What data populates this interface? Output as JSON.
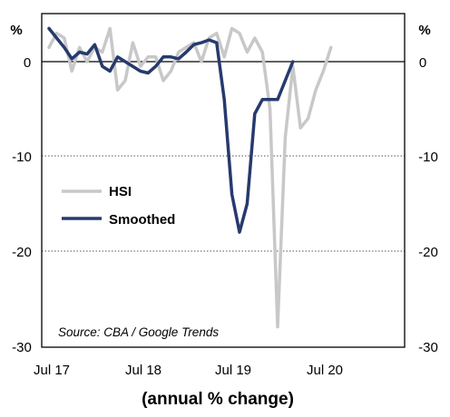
{
  "chart_data": {
    "type": "line",
    "title": "",
    "xlabel": "(annual % change)",
    "ylabel_left": "%",
    "ylabel_right": "%",
    "source": "Source: CBA / Google Trends",
    "x_tick_labels": [
      "Jul 17",
      "Jul 18",
      "Jul 19",
      "Jul 20"
    ],
    "x_range": [
      "2017-07",
      "2020-11"
    ],
    "ylim": [
      -30,
      3
    ],
    "y_ticks": [
      -30,
      -20,
      -10,
      0
    ],
    "y_tick_labels": [
      "-30",
      "-20",
      "-10",
      "0"
    ],
    "grid": "dotted horizontal lines at -10 and -20; solid zero line",
    "legend": {
      "placement": "left-middle"
    },
    "x": [
      "2017-07",
      "2017-08",
      "2017-09",
      "2017-10",
      "2017-11",
      "2017-12",
      "2018-01",
      "2018-02",
      "2018-03",
      "2018-04",
      "2018-05",
      "2018-06",
      "2018-07",
      "2018-08",
      "2018-09",
      "2018-10",
      "2018-11",
      "2018-12",
      "2019-01",
      "2019-02",
      "2019-03",
      "2019-04",
      "2019-05",
      "2019-06",
      "2019-07",
      "2019-08",
      "2019-09",
      "2019-10",
      "2019-11",
      "2019-12",
      "2020-01",
      "2020-02",
      "2020-03",
      "2020-04",
      "2020-05",
      "2020-06",
      "2020-07",
      "2020-08",
      "2020-09",
      "2020-10",
      "2020-11"
    ],
    "series": [
      {
        "name": "HSI",
        "color": "#c8c8c8",
        "values": [
          1.5,
          3,
          2.5,
          -1,
          1.5,
          0,
          1.5,
          1,
          3.5,
          -3,
          -2,
          2,
          -0.5,
          0.5,
          0.5,
          -2,
          -1,
          1,
          1.5,
          2,
          0,
          2.5,
          3,
          0.5,
          3.5,
          3,
          1,
          2.5,
          1,
          -5,
          -28,
          -8,
          -0.5,
          -7,
          -6,
          -3,
          -1,
          1.5,
          null,
          null,
          null
        ]
      },
      {
        "name": "Smoothed",
        "color": "#263a6d",
        "values": [
          3.5,
          2.5,
          1.5,
          0.3,
          1,
          0.8,
          1.8,
          -0.5,
          -1,
          0.5,
          0,
          -0.5,
          -1,
          -1.2,
          -0.5,
          0.5,
          0.5,
          0.3,
          1,
          1.8,
          2,
          2.3,
          2,
          -4,
          -14,
          -18,
          -15,
          -5.5,
          -4,
          -4,
          -4,
          -2,
          0,
          null,
          null,
          null,
          null,
          null,
          null,
          null,
          null
        ]
      }
    ]
  }
}
